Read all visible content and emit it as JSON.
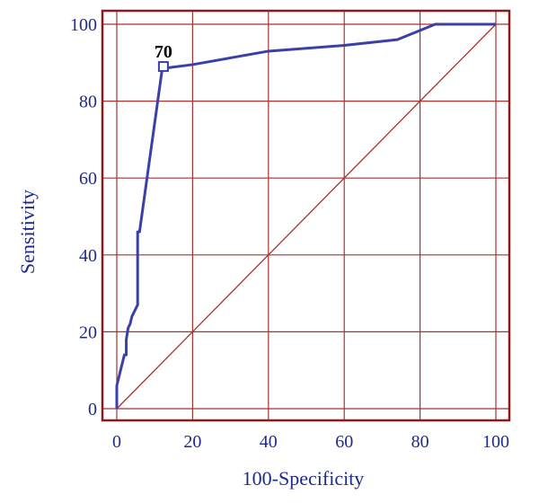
{
  "chart_data": {
    "type": "line",
    "title": "",
    "xlabel": "100-Specificity",
    "ylabel": "Sensitivity",
    "xlim": [
      0,
      100
    ],
    "ylim": [
      0,
      100
    ],
    "grid": true,
    "x_ticks": [
      0,
      20,
      40,
      60,
      80,
      100
    ],
    "y_ticks": [
      0,
      20,
      40,
      60,
      80,
      100
    ],
    "series": [
      {
        "x": [
          0,
          0,
          1,
          2,
          2.5,
          2.5,
          3,
          3.5,
          4,
          5,
          5.5,
          5.5,
          6,
          12,
          20,
          40,
          60,
          74,
          84,
          100
        ],
        "y": [
          0,
          6,
          10,
          14,
          14,
          18,
          21,
          22,
          24,
          26,
          27,
          46,
          46,
          88.5,
          89.5,
          93,
          94.5,
          96,
          100,
          100
        ]
      },
      {
        "x": [
          0,
          100
        ],
        "y": [
          0,
          100
        ]
      }
    ],
    "annotations": [
      {
        "text": "70",
        "x": 12.3,
        "y": 89
      }
    ],
    "colors": {
      "frame": "#8b1a1a",
      "grid": "#a83232",
      "roc": "#3a40a8",
      "diagonal": "#a83232",
      "text": "#1f2a8c",
      "annotation": "#000000"
    }
  }
}
